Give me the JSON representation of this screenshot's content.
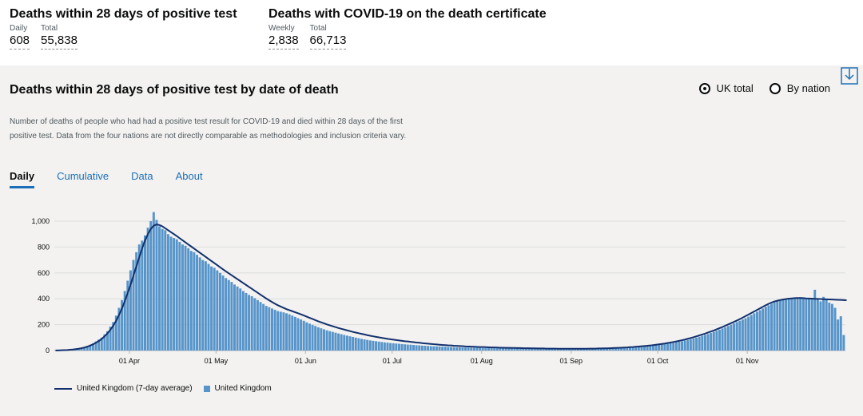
{
  "header": {
    "left": {
      "title": "Deaths within 28 days of positive test",
      "stats": [
        {
          "label": "Daily",
          "value": "608"
        },
        {
          "label": "Total",
          "value": "55,838"
        }
      ]
    },
    "right": {
      "title": "Deaths with COVID-19 on the death certificate",
      "stats": [
        {
          "label": "Weekly",
          "value": "2,838"
        },
        {
          "label": "Total",
          "value": "66,713"
        }
      ]
    }
  },
  "card": {
    "title": "Deaths within 28 days of positive test by date of death",
    "description": "Number of deaths of people who had had a positive test result for COVID-19 and died within 28 days of the first positive test. Data from the four nations are not directly comparable as methodologies and inclusion criteria vary.",
    "radio_options": [
      {
        "label": "UK total",
        "selected": true
      },
      {
        "label": "By nation",
        "selected": false
      }
    ],
    "tabs": [
      "Daily",
      "Cumulative",
      "Data",
      "About"
    ],
    "active_tab": "Daily",
    "download_icon": "download-icon"
  },
  "colors": {
    "bar": "#5694ca",
    "line": "#12306d",
    "link": "#1d70b8",
    "panel": "#f3f2f1"
  },
  "chart_data": {
    "type": "bar",
    "x_start": "2020-03-06",
    "ylim": [
      0,
      1100
    ],
    "y_ticks": [
      "0",
      "200",
      "400",
      "600",
      "800",
      "1,000"
    ],
    "y_tick_values": [
      0,
      200,
      400,
      600,
      800,
      1000
    ],
    "x_ticks": [
      {
        "label": "01 Apr",
        "day": 26
      },
      {
        "label": "01 May",
        "day": 56
      },
      {
        "label": "01 Jun",
        "day": 87
      },
      {
        "label": "01 Jul",
        "day": 117
      },
      {
        "label": "01 Aug",
        "day": 148
      },
      {
        "label": "01 Sep",
        "day": 179
      },
      {
        "label": "01 Oct",
        "day": 209
      },
      {
        "label": "01 Nov",
        "day": 240
      }
    ],
    "series": [
      {
        "name": "United Kingdom (7-day average)",
        "kind": "line"
      },
      {
        "name": "United Kingdom",
        "kind": "bar"
      }
    ],
    "values": [
      1,
      2,
      2,
      4,
      5,
      8,
      10,
      12,
      17,
      20,
      28,
      35,
      45,
      55,
      70,
      85,
      100,
      125,
      150,
      185,
      220,
      270,
      330,
      390,
      460,
      540,
      620,
      700,
      760,
      820,
      850,
      890,
      950,
      1000,
      1070,
      1010,
      960,
      940,
      930,
      900,
      880,
      870,
      860,
      840,
      820,
      810,
      790,
      770,
      760,
      740,
      720,
      700,
      690,
      670,
      650,
      640,
      620,
      600,
      580,
      560,
      545,
      530,
      510,
      495,
      480,
      460,
      445,
      430,
      420,
      405,
      390,
      375,
      360,
      345,
      335,
      325,
      315,
      305,
      300,
      295,
      288,
      280,
      270,
      260,
      250,
      240,
      230,
      218,
      208,
      198,
      190,
      180,
      172,
      164,
      156,
      150,
      144,
      138,
      132,
      126,
      120,
      115,
      110,
      105,
      100,
      95,
      90,
      86,
      82,
      78,
      75,
      72,
      69,
      66,
      63,
      61,
      58,
      56,
      54,
      52,
      50,
      48,
      46,
      45,
      43,
      41,
      40,
      38,
      37,
      35,
      34,
      33,
      32,
      31,
      30,
      29,
      28,
      27,
      26,
      25,
      25,
      24,
      23,
      23,
      22,
      22,
      21,
      21,
      20,
      20,
      19,
      19,
      18,
      18,
      17,
      17,
      16,
      16,
      16,
      15,
      15,
      15,
      14,
      14,
      14,
      14,
      13,
      13,
      13,
      13,
      12,
      12,
      12,
      12,
      12,
      12,
      11,
      11,
      11,
      11,
      11,
      11,
      11,
      11,
      12,
      12,
      12,
      13,
      13,
      14,
      14,
      15,
      15,
      16,
      17,
      18,
      19,
      20,
      21,
      22,
      24,
      25,
      27,
      29,
      31,
      33,
      35,
      37,
      40,
      43,
      46,
      49,
      52,
      56,
      60,
      64,
      68,
      72,
      77,
      82,
      88,
      94,
      100,
      107,
      114,
      121,
      128,
      136,
      144,
      153,
      162,
      171,
      180,
      190,
      200,
      210,
      220,
      230,
      240,
      250,
      262,
      275,
      288,
      300,
      312,
      325,
      338,
      350,
      362,
      372,
      380,
      386,
      392,
      396,
      400,
      404,
      406,
      409,
      412,
      410,
      406,
      400,
      398,
      470,
      405,
      380,
      415,
      395,
      370,
      360,
      330,
      240,
      265,
      120
    ],
    "avg": [
      1,
      1,
      2,
      3,
      4,
      6,
      8,
      11,
      14,
      18,
      23,
      30,
      38,
      48,
      60,
      74,
      90,
      110,
      133,
      160,
      192,
      230,
      275,
      325,
      382,
      445,
      510,
      580,
      650,
      720,
      790,
      850,
      900,
      940,
      965,
      975,
      970,
      960,
      945,
      930,
      915,
      900,
      885,
      868,
      852,
      836,
      820,
      804,
      788,
      772,
      756,
      740,
      724,
      708,
      692,
      676,
      660,
      644,
      628,
      612,
      597,
      582,
      567,
      552,
      537,
      522,
      507,
      492,
      477,
      462,
      447,
      432,
      417,
      402,
      388,
      375,
      362,
      350,
      340,
      330,
      320,
      312,
      304,
      296,
      288,
      280,
      271,
      262,
      253,
      244,
      235,
      226,
      218,
      210,
      202,
      195,
      188,
      181,
      174,
      168,
      162,
      156,
      150,
      144,
      139,
      134,
      129,
      124,
      119,
      114,
      110,
      106,
      102,
      98,
      94,
      90,
      87,
      84,
      81,
      78,
      75,
      72,
      70,
      67,
      65,
      62,
      60,
      57,
      55,
      53,
      51,
      49,
      47,
      45,
      43,
      42,
      40,
      39,
      37,
      36,
      35,
      34,
      32,
      31,
      30,
      29,
      28,
      27,
      27,
      26,
      25,
      24,
      24,
      23,
      22,
      22,
      21,
      21,
      20,
      20,
      19,
      19,
      18,
      18,
      18,
      17,
      17,
      16,
      16,
      16,
      15,
      15,
      15,
      15,
      14,
      14,
      14,
      14,
      14,
      14,
      14,
      14,
      14,
      14,
      14,
      15,
      15,
      15,
      16,
      16,
      17,
      17,
      18,
      19,
      20,
      21,
      22,
      23,
      24,
      26,
      27,
      29,
      31,
      33,
      35,
      37,
      39,
      42,
      45,
      48,
      51,
      54,
      58,
      62,
      66,
      70,
      75,
      80,
      85,
      91,
      97,
      103,
      110,
      117,
      124,
      131,
      139,
      147,
      155,
      164,
      173,
      182,
      192,
      202,
      212,
      222,
      232,
      243,
      254,
      266,
      278,
      290,
      302,
      314,
      326,
      338,
      350,
      361,
      371,
      379,
      385,
      390,
      394,
      398,
      401,
      403,
      405,
      406,
      406,
      405,
      403,
      402,
      401,
      400,
      399,
      398,
      397,
      396,
      395,
      394,
      393,
      392,
      391,
      390,
      389
    ]
  }
}
